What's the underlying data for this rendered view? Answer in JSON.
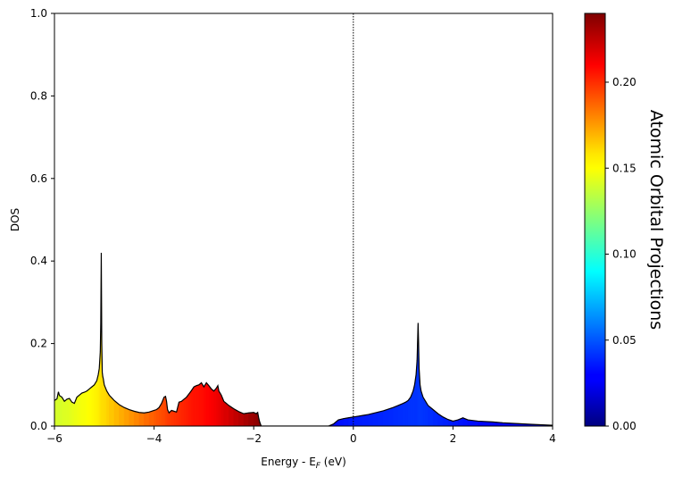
{
  "chart_data": {
    "type": "area",
    "xlabel": "Energy - E",
    "xlabel_sub": "F",
    "xlabel_unit": " (eV)",
    "ylabel": "DOS",
    "xlim": [
      -6,
      4
    ],
    "ylim": [
      0,
      1.0
    ],
    "x_ticks": [
      -6,
      -4,
      -2,
      0,
      2,
      4
    ],
    "x_tick_labels": [
      "−6",
      "−4",
      "−2",
      "0",
      "2",
      "4"
    ],
    "y_ticks": [
      0,
      0.2,
      0.4,
      0.6,
      0.8,
      1.0
    ],
    "y_tick_labels": [
      "0.0",
      "0.2",
      "0.4",
      "0.6",
      "0.8",
      "1.0"
    ],
    "fermi_line_x": 0,
    "colormap": "jet",
    "colorbar": {
      "label": "Atomic Orbital Projections",
      "range": [
        0,
        0.24
      ],
      "ticks": [
        0,
        0.05,
        0.1,
        0.15,
        0.2
      ],
      "tick_labels": [
        "0.00",
        "0.05",
        "0.10",
        "0.15",
        "0.20"
      ]
    },
    "dos": {
      "x": [
        -6.0,
        -5.95,
        -5.92,
        -5.9,
        -5.85,
        -5.8,
        -5.75,
        -5.7,
        -5.65,
        -5.6,
        -5.55,
        -5.5,
        -5.45,
        -5.4,
        -5.35,
        -5.3,
        -5.25,
        -5.2,
        -5.15,
        -5.12,
        -5.1,
        -5.08,
        -5.07,
        -5.06,
        -5.05,
        -5.04,
        -5.03,
        -5.02,
        -5.0,
        -4.95,
        -4.9,
        -4.8,
        -4.7,
        -4.6,
        -4.5,
        -4.4,
        -4.3,
        -4.2,
        -4.1,
        -4.0,
        -3.95,
        -3.9,
        -3.85,
        -3.8,
        -3.77,
        -3.75,
        -3.73,
        -3.7,
        -3.65,
        -3.6,
        -3.55,
        -3.5,
        -3.45,
        -3.4,
        -3.35,
        -3.3,
        -3.25,
        -3.2,
        -3.15,
        -3.1,
        -3.05,
        -3.0,
        -2.95,
        -2.9,
        -2.85,
        -2.8,
        -2.75,
        -2.72,
        -2.7,
        -2.65,
        -2.6,
        -2.5,
        -2.4,
        -2.3,
        -2.2,
        -2.1,
        -2.0,
        -1.95,
        -1.92,
        -1.9,
        -1.88,
        -1.85,
        -1.8,
        -1.5,
        -1.0,
        -0.5,
        -0.4,
        -0.3,
        -0.2,
        -0.1,
        0.0,
        0.1,
        0.2,
        0.3,
        0.4,
        0.5,
        0.6,
        0.7,
        0.8,
        0.9,
        1.0,
        1.05,
        1.1,
        1.15,
        1.2,
        1.23,
        1.26,
        1.28,
        1.3,
        1.31,
        1.32,
        1.34,
        1.36,
        1.4,
        1.45,
        1.5,
        1.6,
        1.7,
        1.8,
        1.9,
        2.0,
        2.1,
        2.2,
        2.3,
        2.5,
        2.8,
        3.0,
        3.3,
        3.6,
        4.0
      ],
      "y": [
        0.062,
        0.066,
        0.083,
        0.074,
        0.07,
        0.06,
        0.065,
        0.067,
        0.058,
        0.055,
        0.07,
        0.075,
        0.08,
        0.082,
        0.085,
        0.09,
        0.095,
        0.1,
        0.11,
        0.125,
        0.14,
        0.18,
        0.25,
        0.42,
        0.2,
        0.13,
        0.12,
        0.115,
        0.1,
        0.085,
        0.075,
        0.062,
        0.052,
        0.045,
        0.04,
        0.036,
        0.033,
        0.032,
        0.034,
        0.038,
        0.04,
        0.045,
        0.055,
        0.07,
        0.072,
        0.06,
        0.04,
        0.032,
        0.038,
        0.036,
        0.034,
        0.058,
        0.06,
        0.065,
        0.07,
        0.078,
        0.086,
        0.095,
        0.098,
        0.1,
        0.105,
        0.095,
        0.105,
        0.098,
        0.09,
        0.085,
        0.092,
        0.098,
        0.085,
        0.075,
        0.06,
        0.05,
        0.042,
        0.035,
        0.03,
        0.032,
        0.033,
        0.03,
        0.033,
        0.02,
        0.01,
        0.0,
        0.0,
        0.0,
        0.0,
        0.0,
        0.005,
        0.015,
        0.018,
        0.02,
        0.022,
        0.024,
        0.026,
        0.028,
        0.031,
        0.034,
        0.037,
        0.041,
        0.045,
        0.05,
        0.055,
        0.058,
        0.062,
        0.07,
        0.085,
        0.1,
        0.125,
        0.16,
        0.25,
        0.2,
        0.14,
        0.1,
        0.085,
        0.07,
        0.06,
        0.05,
        0.04,
        0.03,
        0.022,
        0.016,
        0.012,
        0.015,
        0.02,
        0.015,
        0.012,
        0.01,
        0.008,
        0.006,
        0.004,
        0.002
      ],
      "color_value": [
        0.14,
        0.14,
        0.14,
        0.14,
        0.141,
        0.142,
        0.142,
        0.143,
        0.144,
        0.145,
        0.146,
        0.147,
        0.148,
        0.148,
        0.149,
        0.15,
        0.151,
        0.152,
        0.153,
        0.154,
        0.155,
        0.156,
        0.157,
        0.158,
        0.158,
        0.158,
        0.158,
        0.158,
        0.158,
        0.16,
        0.162,
        0.165,
        0.168,
        0.171,
        0.174,
        0.177,
        0.18,
        0.183,
        0.186,
        0.188,
        0.19,
        0.191,
        0.192,
        0.193,
        0.194,
        0.195,
        0.196,
        0.196,
        0.197,
        0.198,
        0.199,
        0.2,
        0.201,
        0.202,
        0.203,
        0.204,
        0.205,
        0.206,
        0.206,
        0.207,
        0.207,
        0.208,
        0.209,
        0.21,
        0.211,
        0.212,
        0.213,
        0.214,
        0.215,
        0.216,
        0.218,
        0.22,
        0.223,
        0.226,
        0.229,
        0.232,
        0.235,
        0.236,
        0.237,
        0.237,
        0.238,
        0.238,
        0.238,
        0.02,
        0.025,
        0.03,
        0.032,
        0.033,
        0.034,
        0.035,
        0.036,
        0.036,
        0.037,
        0.037,
        0.038,
        0.038,
        0.039,
        0.039,
        0.04,
        0.04,
        0.041,
        0.041,
        0.041,
        0.042,
        0.042,
        0.042,
        0.042,
        0.042,
        0.043,
        0.043,
        0.043,
        0.043,
        0.043,
        0.042,
        0.042,
        0.041,
        0.04,
        0.039,
        0.038,
        0.037,
        0.036,
        0.035,
        0.034,
        0.033,
        0.032,
        0.03,
        0.029,
        0.027,
        0.026,
        0.025
      ]
    }
  }
}
